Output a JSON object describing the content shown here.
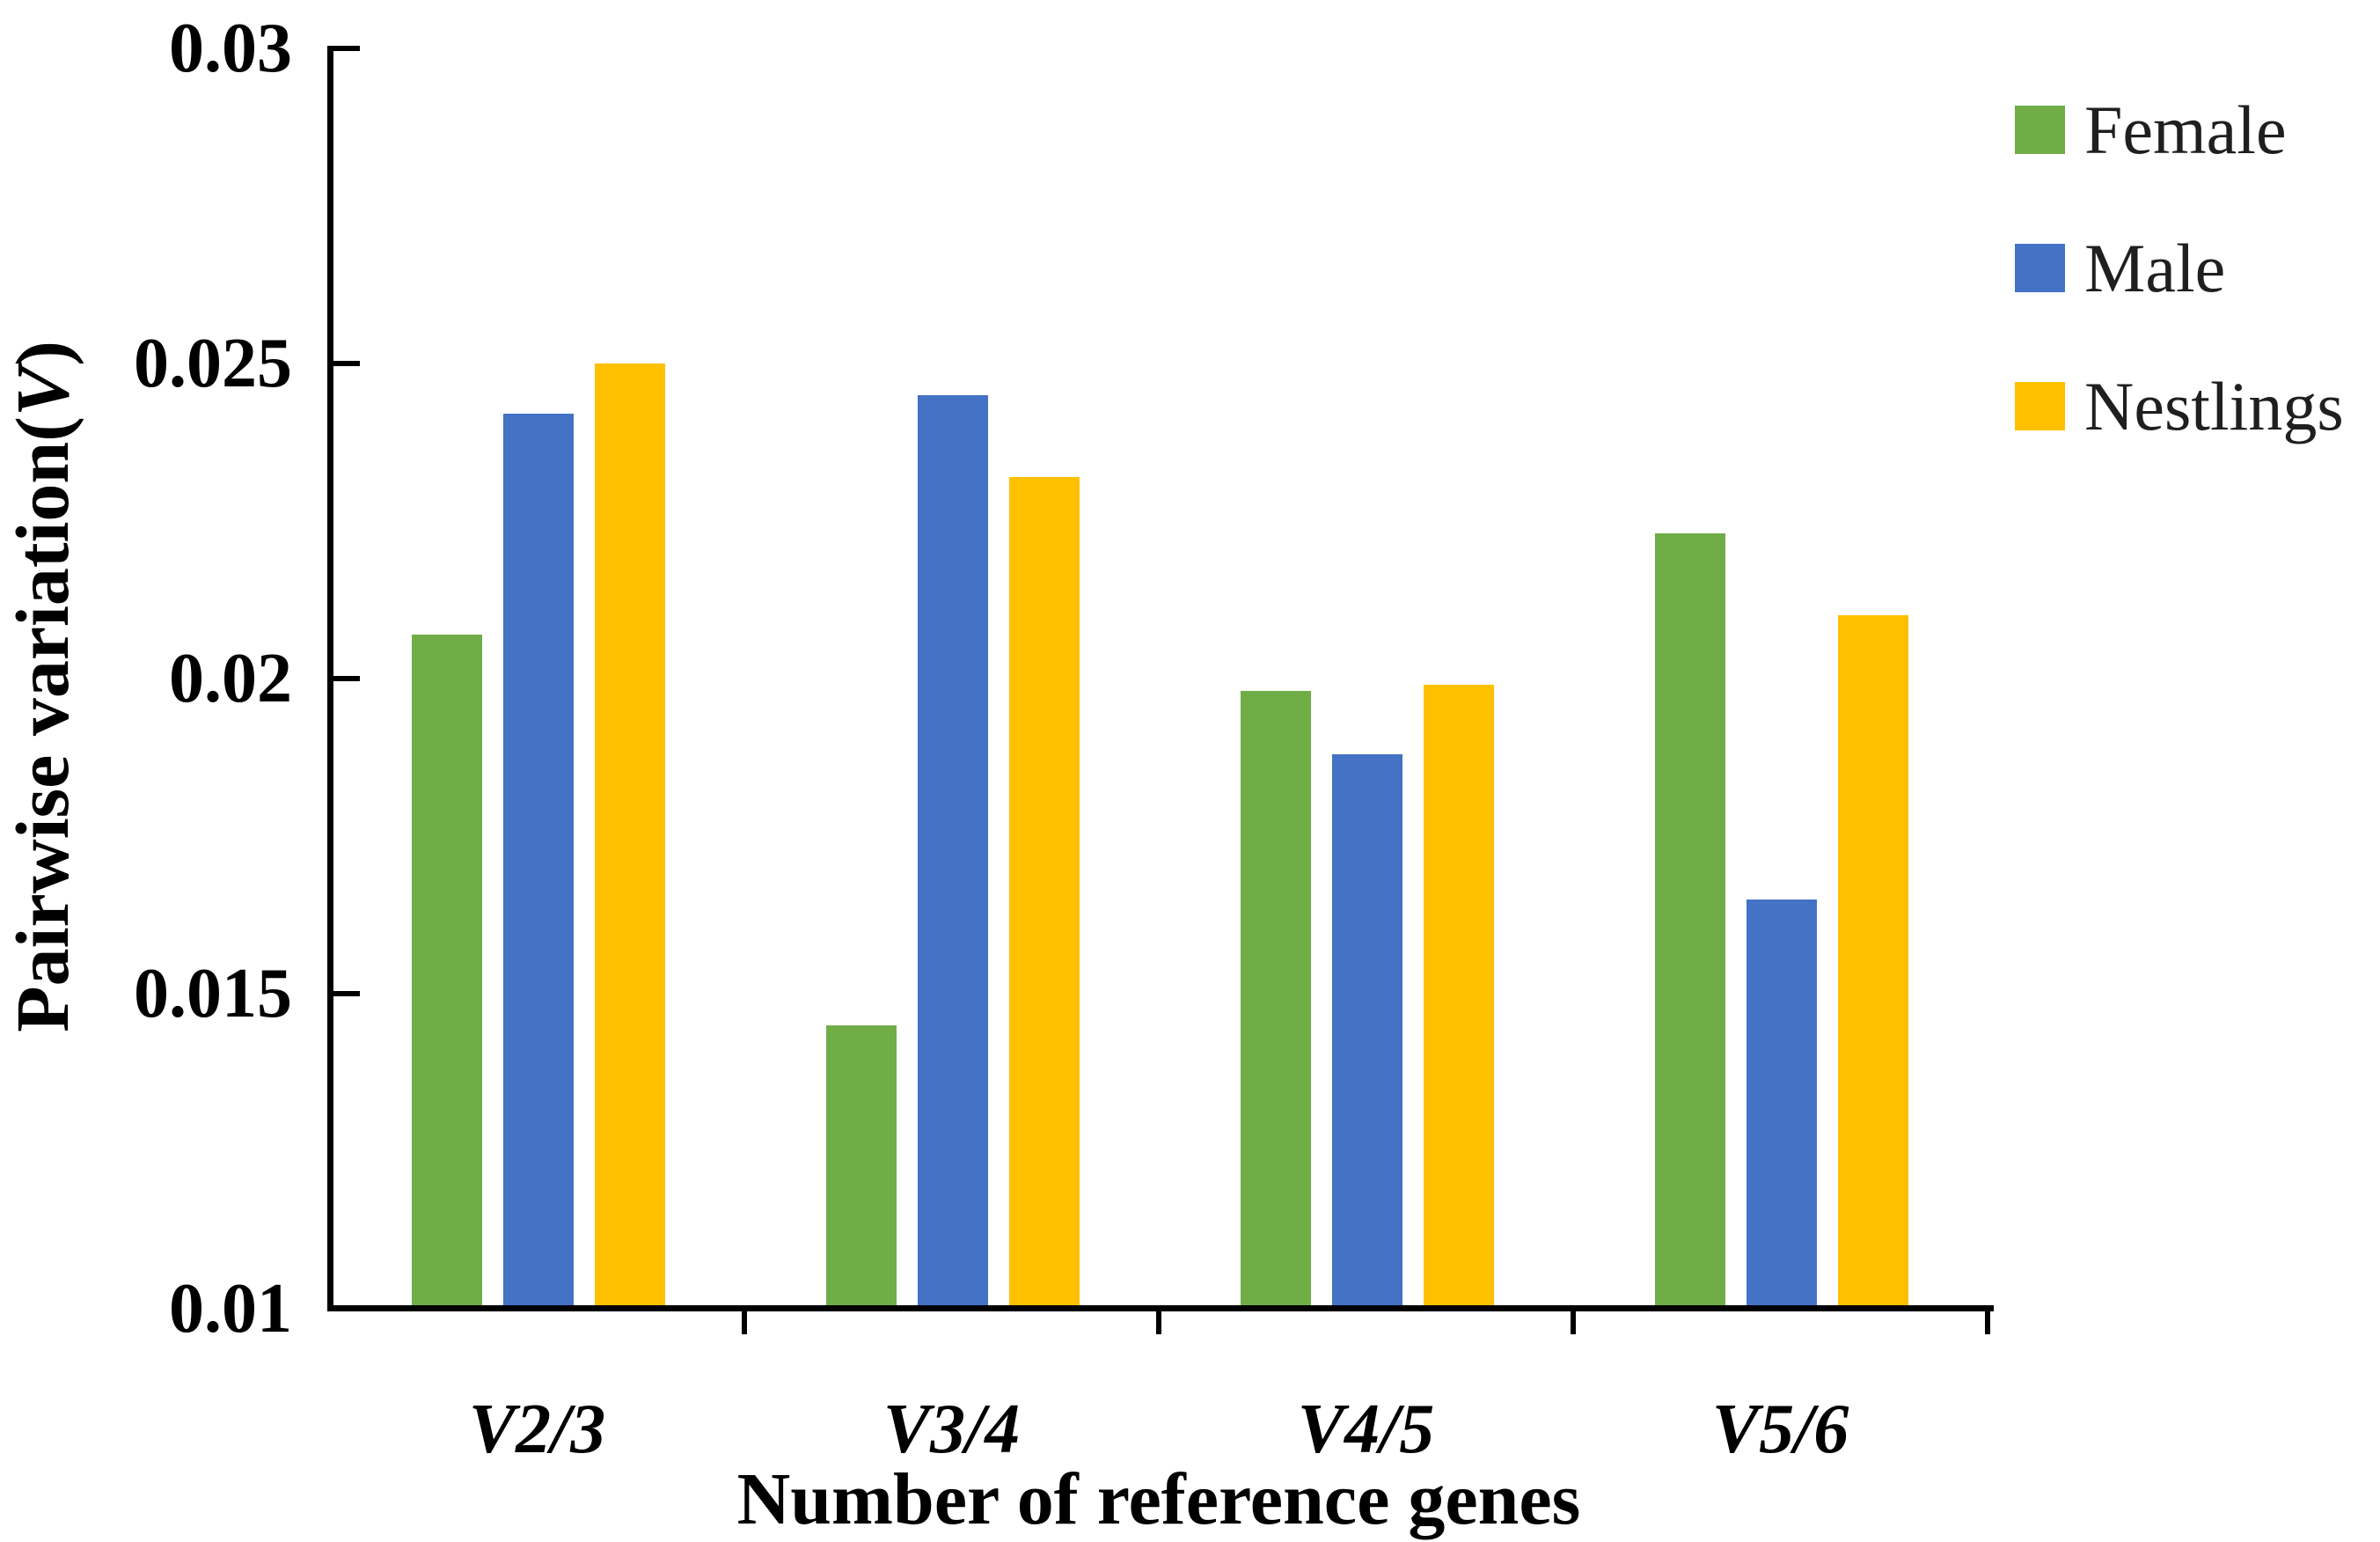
{
  "figure": {
    "x_axis_title": "Number of reference genes",
    "y_axis_title_prefix": "Pairwise variation(",
    "y_axis_title_italic": "V",
    "y_axis_title_suffix": ")"
  },
  "chart_data": {
    "type": "bar",
    "title": "",
    "categories": [
      "V2/3",
      "V3/4",
      "V4/5",
      "V5/6"
    ],
    "series": [
      {
        "name": "Female",
        "color": "#70AD47",
        "values": [
          0.0207,
          0.0145,
          0.0198,
          0.0223
        ]
      },
      {
        "name": "Male",
        "color": "#4472C4",
        "values": [
          0.0242,
          0.0245,
          0.0188,
          0.0165
        ]
      },
      {
        "name": "Nestlings",
        "color": "#FFC000",
        "values": [
          0.025,
          0.0232,
          0.0199,
          0.021
        ]
      }
    ],
    "xlabel": "Number of reference genes",
    "ylabel": "Pairwise variation(V)",
    "ylim": [
      0.01,
      0.03
    ],
    "ytick_values": [
      0.03,
      0.025,
      0.02,
      0.015,
      0.01
    ],
    "ytick_labels": [
      "0.03",
      "0.025",
      "0.02",
      "0.015",
      "0.01"
    ],
    "grid": false,
    "legend_position": "outside-top-right",
    "axis_color": "#000000"
  }
}
